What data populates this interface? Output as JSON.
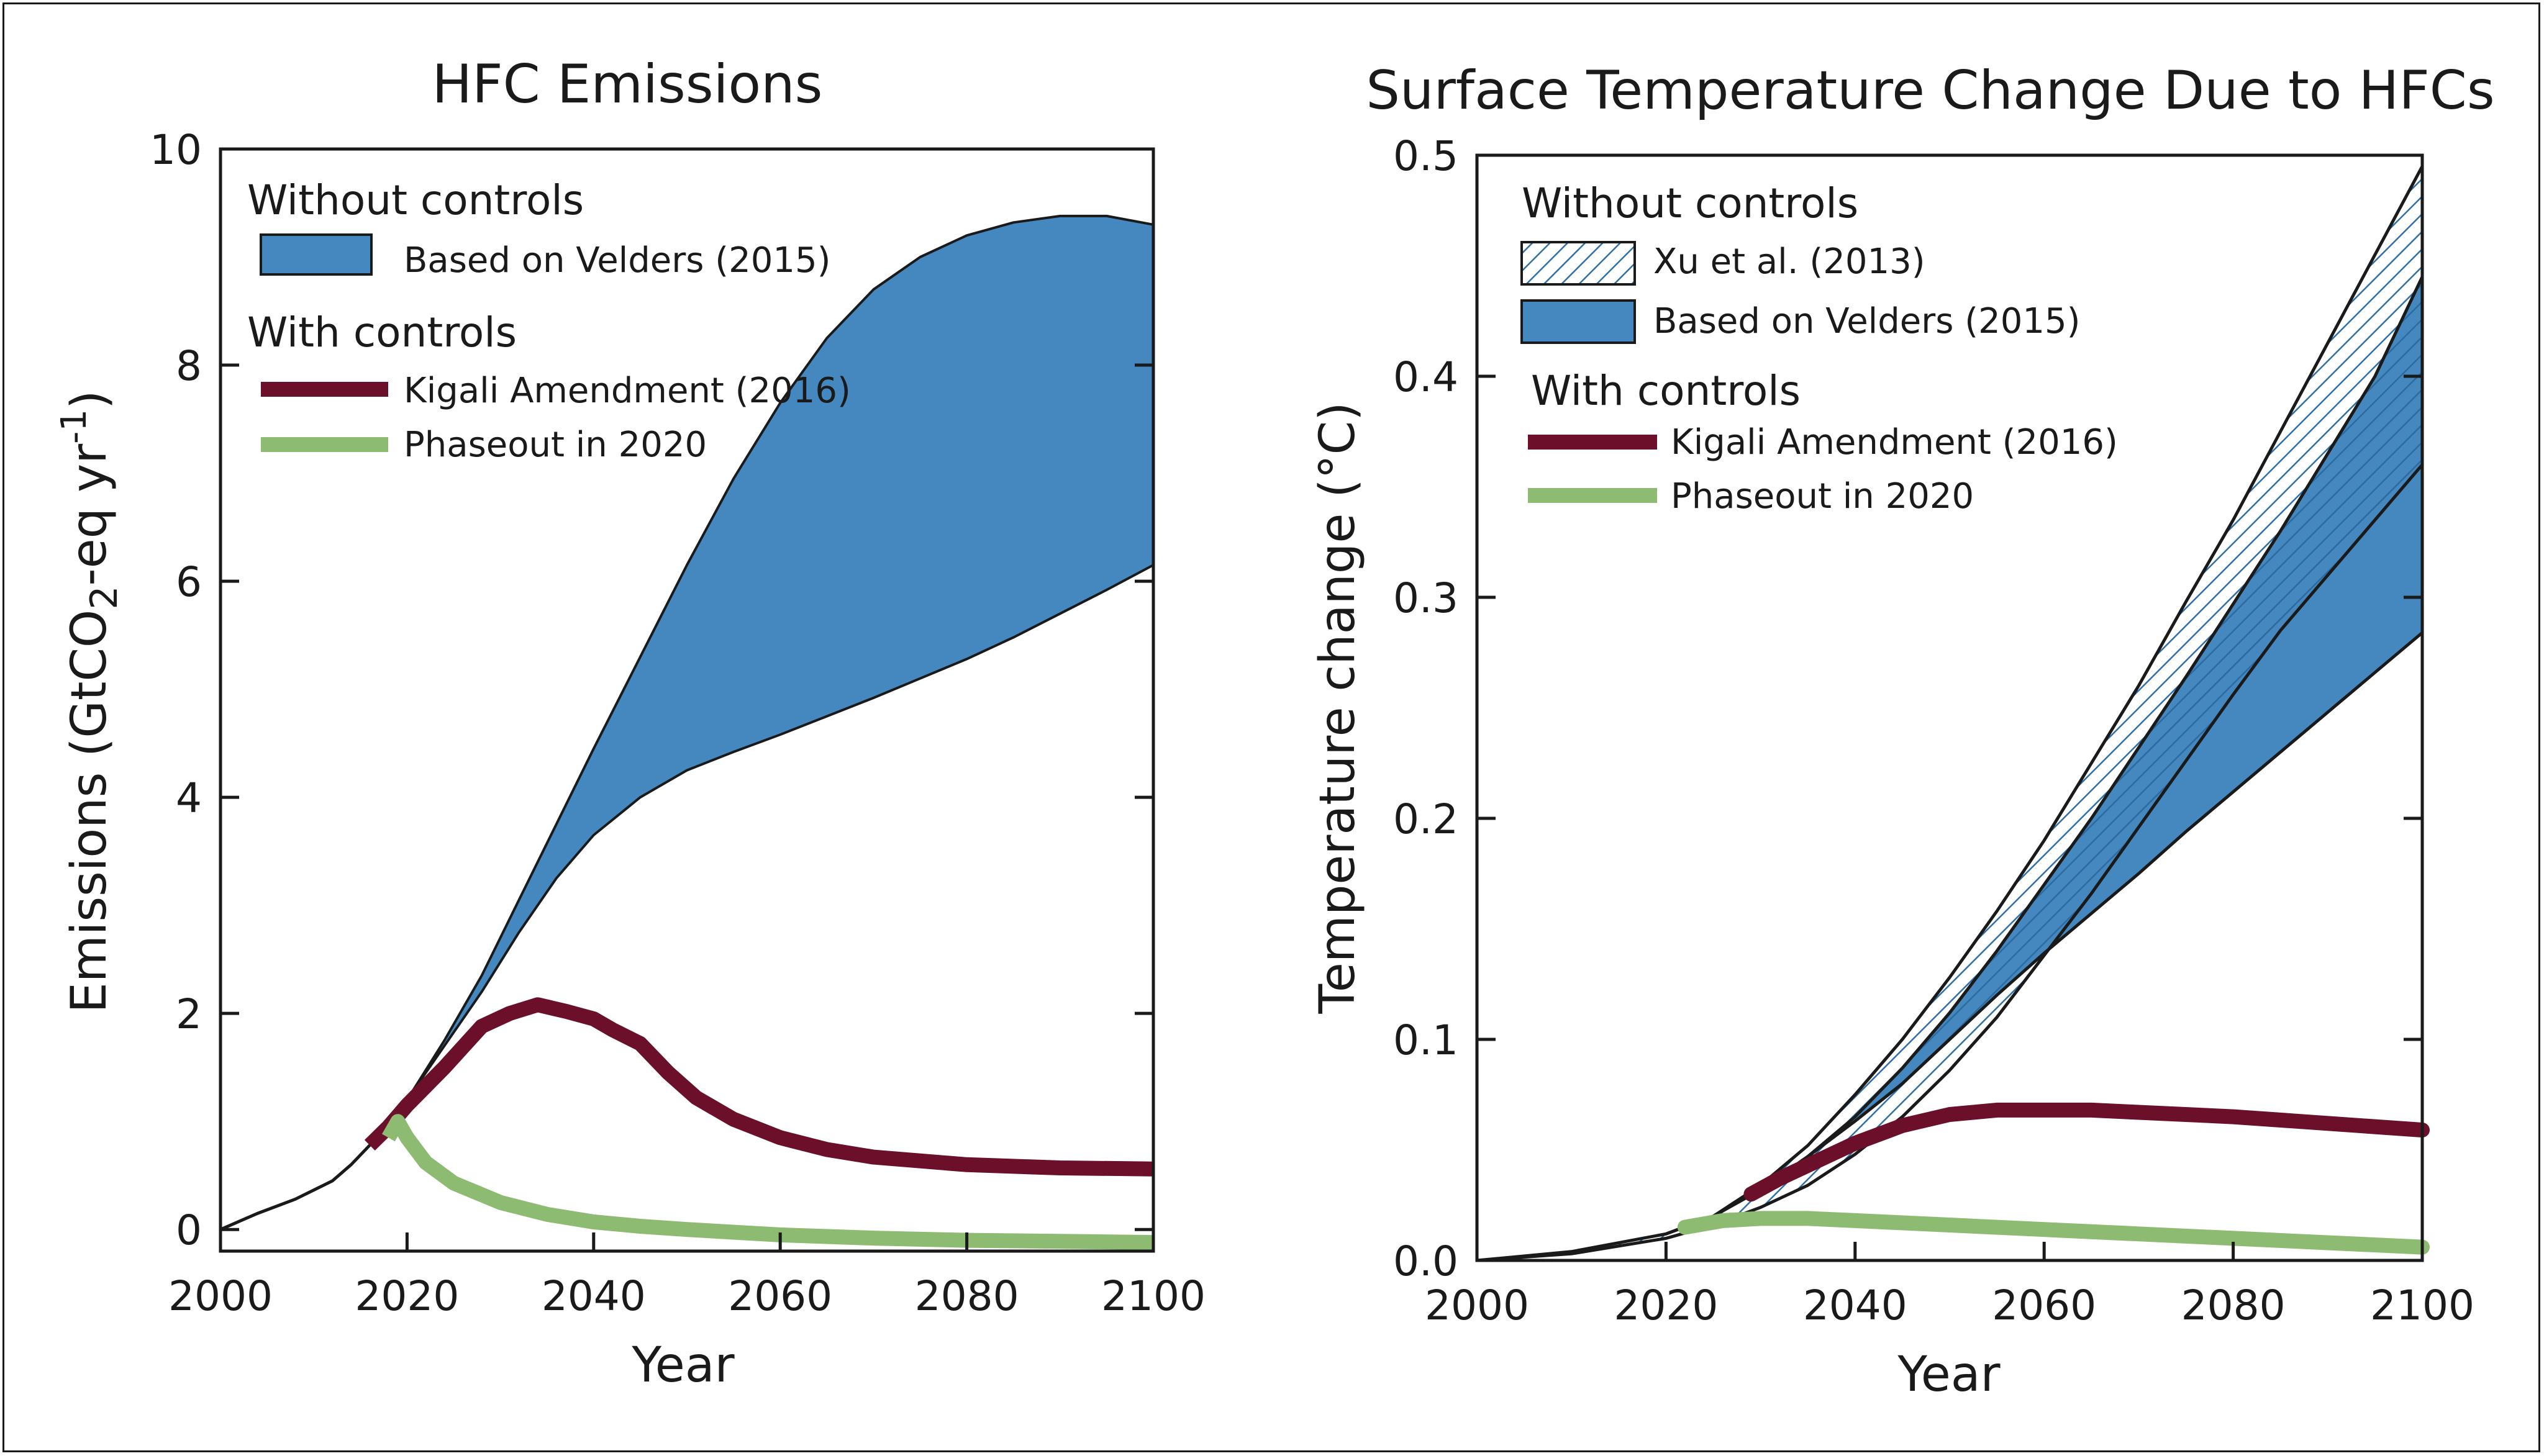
{
  "chart_data": [
    {
      "type": "area",
      "title": "HFC Emissions",
      "xlabel": "Year",
      "ylabel": "Emissions (GtCO2-eq yr-1)",
      "ylabel_parts": {
        "main": "Emissions (GtCO",
        "sub": "2",
        "mid": "-eq yr",
        "sup": "-1",
        "end": ")"
      },
      "xlim": [
        2000,
        2100
      ],
      "ylim": [
        -0.2,
        10
      ],
      "x_ticks": [
        2000,
        2020,
        2040,
        2060,
        2080,
        2100
      ],
      "y_ticks": [
        0,
        2,
        4,
        6,
        8,
        10
      ],
      "legend": {
        "without_header": "Without controls",
        "with_header": "With controls",
        "entries": [
          "Based on Velders (2015)",
          "Kigali Amendment (2016)",
          "Phaseout in 2020"
        ]
      },
      "historical": {
        "x": [
          2000,
          2004,
          2008,
          2012,
          2014,
          2016,
          2018
        ],
        "y": [
          0.0,
          0.15,
          0.28,
          0.45,
          0.6,
          0.78,
          0.98
        ]
      },
      "series": [
        {
          "name": "Based on Velders (2015)",
          "kind": "band",
          "color": "#4588bf",
          "x": [
            2018,
            2020,
            2024,
            2028,
            2032,
            2036,
            2040,
            2045,
            2050,
            2055,
            2060,
            2065,
            2070,
            2075,
            2080,
            2085,
            2090,
            2095,
            2100
          ],
          "upper": [
            1.0,
            1.2,
            1.75,
            2.35,
            3.05,
            3.75,
            4.45,
            5.3,
            6.15,
            6.95,
            7.65,
            8.25,
            8.7,
            9.0,
            9.2,
            9.32,
            9.38,
            9.38,
            9.3
          ],
          "lower": [
            1.0,
            1.2,
            1.7,
            2.2,
            2.75,
            3.25,
            3.65,
            4.0,
            4.25,
            4.42,
            4.58,
            4.75,
            4.92,
            5.1,
            5.28,
            5.48,
            5.7,
            5.92,
            6.15
          ]
        },
        {
          "name": "Kigali Amendment (2016)",
          "kind": "line",
          "color": "#6b0f2a",
          "x": [
            2016,
            2018,
            2020,
            2024,
            2028,
            2031,
            2034,
            2037,
            2040,
            2042,
            2045,
            2048,
            2051,
            2055,
            2060,
            2065,
            2070,
            2080,
            2090,
            2100
          ],
          "y": [
            0.78,
            0.95,
            1.15,
            1.5,
            1.88,
            2.0,
            2.08,
            2.02,
            1.95,
            1.85,
            1.72,
            1.45,
            1.22,
            1.02,
            0.85,
            0.74,
            0.67,
            0.6,
            0.57,
            0.56
          ]
        },
        {
          "name": "Phaseout in 2020",
          "kind": "line",
          "color": "#8dbb72",
          "x": [
            2018,
            2019,
            2020,
            2022,
            2025,
            2030,
            2035,
            2040,
            2045,
            2050,
            2060,
            2070,
            2080,
            2090,
            2100
          ],
          "y": [
            0.85,
            1.0,
            0.85,
            0.62,
            0.43,
            0.25,
            0.14,
            0.07,
            0.03,
            0.0,
            -0.05,
            -0.08,
            -0.1,
            -0.11,
            -0.12
          ]
        }
      ]
    },
    {
      "type": "area",
      "title": "Surface Temperature Change Due to HFCs",
      "xlabel": "Year",
      "ylabel": "Temperature change (°C)",
      "xlim": [
        2000,
        2100
      ],
      "ylim": [
        0,
        0.5
      ],
      "x_ticks": [
        2000,
        2020,
        2040,
        2060,
        2080,
        2100
      ],
      "y_ticks": [
        0.0,
        0.1,
        0.2,
        0.3,
        0.4,
        0.5
      ],
      "y_tick_labels": [
        "0.0",
        "0.1",
        "0.2",
        "0.3",
        "0.4",
        "0.5"
      ],
      "legend": {
        "without_header": "Without controls",
        "with_header": "With controls",
        "entries": [
          "Xu et al. (2013)",
          "Based on Velders (2015)",
          "Kigali Amendment (2016)",
          "Phaseout in 2020"
        ]
      },
      "series": [
        {
          "name": "Xu et al. (2013)",
          "kind": "band",
          "pattern": "hatched",
          "color": "#2f6fa8",
          "x": [
            2000,
            2010,
            2020,
            2025,
            2030,
            2035,
            2040,
            2045,
            2050,
            2055,
            2060,
            2065,
            2070,
            2075,
            2080,
            2085,
            2090,
            2095,
            2100
          ],
          "upper": [
            0.0,
            0.004,
            0.012,
            0.02,
            0.034,
            0.052,
            0.075,
            0.1,
            0.128,
            0.158,
            0.19,
            0.225,
            0.26,
            0.298,
            0.335,
            0.375,
            0.415,
            0.455,
            0.495
          ],
          "lower": [
            0.0,
            0.003,
            0.01,
            0.016,
            0.024,
            0.034,
            0.048,
            0.065,
            0.086,
            0.11,
            0.138,
            0.166,
            0.196,
            0.226,
            0.256,
            0.285,
            0.31,
            0.335,
            0.36
          ]
        },
        {
          "name": "Based on Velders (2015)",
          "kind": "band",
          "color": "#4588bf",
          "x": [
            2020,
            2025,
            2030,
            2035,
            2040,
            2045,
            2050,
            2055,
            2060,
            2065,
            2070,
            2075,
            2080,
            2085,
            2090,
            2095,
            2100
          ],
          "upper": [
            0.012,
            0.02,
            0.032,
            0.047,
            0.065,
            0.087,
            0.112,
            0.14,
            0.17,
            0.2,
            0.232,
            0.264,
            0.297,
            0.33,
            0.365,
            0.4,
            0.445
          ],
          "lower": [
            0.012,
            0.02,
            0.032,
            0.047,
            0.063,
            0.08,
            0.1,
            0.12,
            0.139,
            0.157,
            0.175,
            0.194,
            0.212,
            0.23,
            0.248,
            0.266,
            0.284
          ]
        },
        {
          "name": "Kigali Amendment (2016)",
          "kind": "line",
          "color": "#6b0f2a",
          "x": [
            2029,
            2032,
            2036,
            2040,
            2045,
            2050,
            2055,
            2060,
            2065,
            2070,
            2080,
            2090,
            2100
          ],
          "y": [
            0.03,
            0.037,
            0.045,
            0.053,
            0.061,
            0.066,
            0.068,
            0.068,
            0.068,
            0.067,
            0.065,
            0.062,
            0.059
          ]
        },
        {
          "name": "Phaseout in 2020",
          "kind": "line",
          "color": "#8dbb72",
          "x": [
            2022,
            2026,
            2030,
            2035,
            2040,
            2050,
            2060,
            2070,
            2080,
            2090,
            2100
          ],
          "y": [
            0.015,
            0.018,
            0.019,
            0.019,
            0.018,
            0.016,
            0.014,
            0.012,
            0.01,
            0.008,
            0.006
          ]
        }
      ]
    }
  ]
}
